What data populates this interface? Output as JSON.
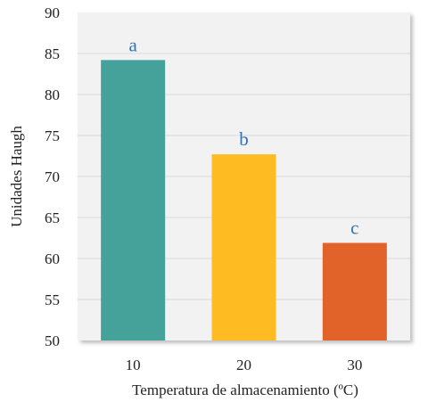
{
  "chart_data": {
    "type": "bar",
    "title": "",
    "xlabel": "Temperatura de almacenamiento (ºC)",
    "ylabel": "Unidades Haugh",
    "categories": [
      "10",
      "20",
      "30"
    ],
    "values": [
      84.2,
      72.7,
      61.9
    ],
    "bar_labels": [
      "a",
      "b",
      "c"
    ],
    "bar_colors": [
      "#45A29A",
      "#FFBC22",
      "#E2632A"
    ],
    "label_color": "#2E74B5",
    "ylim": [
      50,
      90
    ],
    "yticks": [
      "50",
      "55",
      "60",
      "65",
      "70",
      "75",
      "80",
      "85",
      "90"
    ],
    "grid": true,
    "legend": "none"
  }
}
